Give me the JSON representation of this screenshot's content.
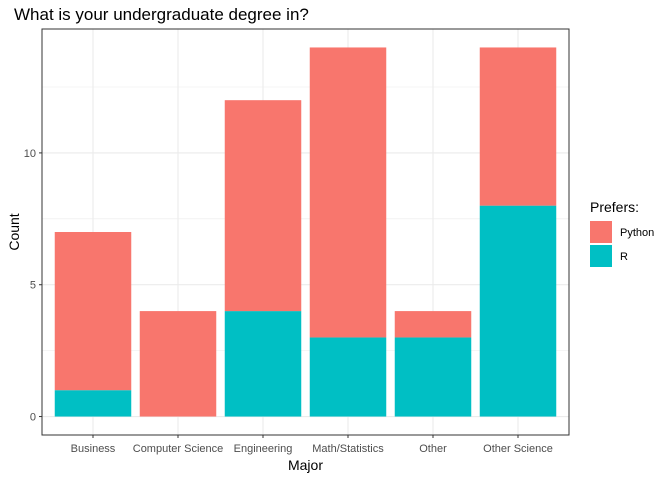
{
  "chart_data": {
    "type": "bar",
    "stacked": true,
    "title": "What is your undergraduate degree in?",
    "xlabel": "Major",
    "ylabel": "Count",
    "categories": [
      "Business",
      "Computer Science",
      "Engineering",
      "Math/Statistics",
      "Other",
      "Other Science"
    ],
    "series": [
      {
        "name": "Python",
        "color": "#F8766D",
        "values": [
          6,
          4,
          8,
          11,
          1,
          6
        ]
      },
      {
        "name": "R",
        "color": "#00BFC4",
        "values": [
          1,
          0,
          4,
          3,
          3,
          8
        ]
      }
    ],
    "ylim": [
      0,
      14
    ],
    "yticks": [
      0,
      5,
      10
    ],
    "grid": true,
    "legend": {
      "title": "Prefers:",
      "position": "right"
    }
  }
}
